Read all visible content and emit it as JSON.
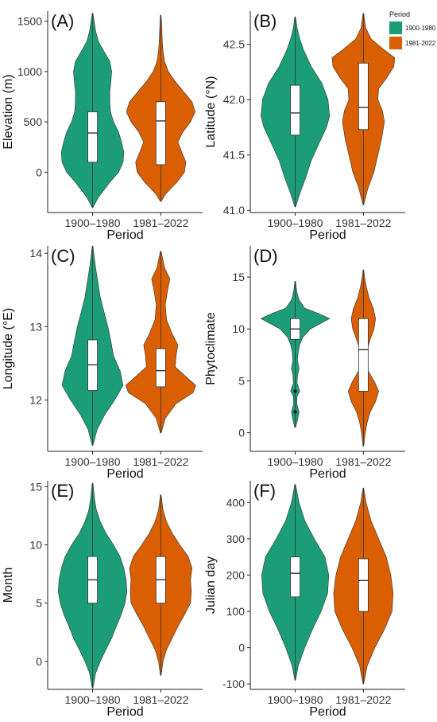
{
  "colors": {
    "series_1900_1980": "#1b9e77",
    "series_1981_2022": "#d95f02",
    "box_fill": "#ffffff",
    "outline": "#333333",
    "axis": "#222222",
    "text": "#111111"
  },
  "legend": {
    "title": "Period",
    "items": [
      {
        "label": "1900-1980",
        "color": "#1b9e77"
      },
      {
        "label": "1981-2022",
        "color": "#d95f02"
      }
    ],
    "placement": "top-right"
  },
  "chart_data": [
    {
      "panel": "(A)",
      "type": "violin",
      "xlabel": "Period",
      "ylabel": "Elevation (m)",
      "categories": [
        "1900–1980",
        "1981–2022"
      ],
      "ylim": [
        -400,
        1600
      ],
      "yticks": [
        0,
        500,
        1000,
        1500
      ],
      "grid": false,
      "groups": [
        {
          "name": "1900–1980",
          "whisker": [
            -350,
            1580
          ],
          "q1": 100,
          "median": 390,
          "q3": 600,
          "density": [
            [
              -350,
              0.01
            ],
            [
              -250,
              0.15
            ],
            [
              -100,
              0.45
            ],
            [
              0,
              0.68
            ],
            [
              100,
              0.8
            ],
            [
              200,
              0.82
            ],
            [
              300,
              0.76
            ],
            [
              400,
              0.68
            ],
            [
              500,
              0.55
            ],
            [
              600,
              0.47
            ],
            [
              700,
              0.45
            ],
            [
              800,
              0.45
            ],
            [
              900,
              0.48
            ],
            [
              1000,
              0.5
            ],
            [
              1100,
              0.45
            ],
            [
              1200,
              0.3
            ],
            [
              1300,
              0.15
            ],
            [
              1400,
              0.08
            ],
            [
              1500,
              0.04
            ],
            [
              1580,
              0.01
            ]
          ]
        },
        {
          "name": "1981–2022",
          "whisker": [
            -290,
            1560
          ],
          "q1": 75,
          "median": 510,
          "q3": 700,
          "density": [
            [
              -290,
              0.01
            ],
            [
              -220,
              0.12
            ],
            [
              -100,
              0.42
            ],
            [
              0,
              0.62
            ],
            [
              100,
              0.66
            ],
            [
              200,
              0.55
            ],
            [
              300,
              0.45
            ],
            [
              400,
              0.58
            ],
            [
              500,
              0.78
            ],
            [
              600,
              0.9
            ],
            [
              700,
              0.82
            ],
            [
              800,
              0.6
            ],
            [
              900,
              0.38
            ],
            [
              1000,
              0.2
            ],
            [
              1100,
              0.1
            ],
            [
              1200,
              0.06
            ],
            [
              1300,
              0.04
            ],
            [
              1400,
              0.03
            ],
            [
              1500,
              0.02
            ],
            [
              1560,
              0.01
            ]
          ]
        }
      ]
    },
    {
      "panel": "(B)",
      "type": "violin",
      "xlabel": "Period",
      "ylabel": "Latitude (°N)",
      "categories": [
        "1900–1980",
        "1981–2022"
      ],
      "ylim": [
        40.98,
        42.8
      ],
      "yticks": [
        41.0,
        41.5,
        42.0,
        42.5
      ],
      "ytick_labels": [
        "41.0",
        "41.5",
        "42.0",
        "42.5"
      ],
      "grid": false,
      "groups": [
        {
          "name": "1900–1980",
          "whisker": [
            41.03,
            42.75
          ],
          "q1": 41.68,
          "median": 41.88,
          "q3": 42.13,
          "density": [
            [
              41.03,
              0.01
            ],
            [
              41.15,
              0.12
            ],
            [
              41.3,
              0.28
            ],
            [
              41.45,
              0.42
            ],
            [
              41.6,
              0.62
            ],
            [
              41.75,
              0.82
            ],
            [
              41.85,
              0.9
            ],
            [
              42.0,
              0.86
            ],
            [
              42.15,
              0.7
            ],
            [
              42.3,
              0.42
            ],
            [
              42.45,
              0.22
            ],
            [
              42.55,
              0.12
            ],
            [
              42.65,
              0.05
            ],
            [
              42.75,
              0.01
            ]
          ]
        },
        {
          "name": "1981–2022",
          "whisker": [
            41.05,
            42.78
          ],
          "q1": 41.73,
          "median": 41.93,
          "q3": 42.33,
          "density": [
            [
              41.05,
              0.01
            ],
            [
              41.2,
              0.12
            ],
            [
              41.35,
              0.28
            ],
            [
              41.5,
              0.38
            ],
            [
              41.65,
              0.48
            ],
            [
              41.8,
              0.55
            ],
            [
              41.9,
              0.5
            ],
            [
              42.0,
              0.38
            ],
            [
              42.1,
              0.4
            ],
            [
              42.2,
              0.62
            ],
            [
              42.3,
              0.8
            ],
            [
              42.38,
              0.82
            ],
            [
              42.45,
              0.55
            ],
            [
              42.55,
              0.2
            ],
            [
              42.65,
              0.06
            ],
            [
              42.78,
              0.01
            ]
          ]
        }
      ]
    },
    {
      "panel": "(C)",
      "type": "violin",
      "xlabel": "Period",
      "ylabel": "Longitude (°E)",
      "categories": [
        "1900–1980",
        "1981–2022"
      ],
      "ylim": [
        11.3,
        14.1
      ],
      "yticks": [
        12,
        13,
        14
      ],
      "grid": false,
      "groups": [
        {
          "name": "1900–1980",
          "whisker": [
            11.38,
            14.1
          ],
          "q1": 12.13,
          "median": 12.48,
          "q3": 12.82,
          "density": [
            [
              11.38,
              0.01
            ],
            [
              11.6,
              0.12
            ],
            [
              11.8,
              0.32
            ],
            [
              12.0,
              0.58
            ],
            [
              12.2,
              0.8
            ],
            [
              12.4,
              0.72
            ],
            [
              12.6,
              0.55
            ],
            [
              12.8,
              0.48
            ],
            [
              13.0,
              0.4
            ],
            [
              13.2,
              0.3
            ],
            [
              13.4,
              0.2
            ],
            [
              13.6,
              0.14
            ],
            [
              13.8,
              0.08
            ],
            [
              14.0,
              0.03
            ],
            [
              14.1,
              0.01
            ]
          ]
        },
        {
          "name": "1981–2022",
          "whisker": [
            11.55,
            14.03
          ],
          "q1": 12.18,
          "median": 12.4,
          "q3": 12.7,
          "density": [
            [
              11.55,
              0.01
            ],
            [
              11.75,
              0.12
            ],
            [
              11.95,
              0.4
            ],
            [
              12.1,
              0.85
            ],
            [
              12.2,
              0.92
            ],
            [
              12.3,
              0.7
            ],
            [
              12.45,
              0.38
            ],
            [
              12.6,
              0.4
            ],
            [
              12.75,
              0.45
            ],
            [
              12.9,
              0.3
            ],
            [
              13.1,
              0.15
            ],
            [
              13.3,
              0.12
            ],
            [
              13.5,
              0.18
            ],
            [
              13.65,
              0.24
            ],
            [
              13.8,
              0.1
            ],
            [
              14.03,
              0.01
            ]
          ]
        }
      ]
    },
    {
      "panel": "(D)",
      "type": "violin",
      "xlabel": "Period",
      "ylabel": "Phytoclimate",
      "categories": [
        "1900–1980",
        "1981–2022"
      ],
      "ylim": [
        -1.8,
        18
      ],
      "yticks": [
        0,
        5,
        10,
        15
      ],
      "grid": false,
      "groups": [
        {
          "name": "1900–1980",
          "whisker": [
            0.5,
            14.6
          ],
          "q1": 9,
          "median": 10,
          "q3": 11,
          "outliers": [
            2,
            4
          ],
          "density": [
            [
              0.5,
              0.01
            ],
            [
              1.2,
              0.06
            ],
            [
              2,
              0.1
            ],
            [
              2.8,
              0.04
            ],
            [
              3.5,
              0.05
            ],
            [
              4,
              0.12
            ],
            [
              4.8,
              0.05
            ],
            [
              5.5,
              0.06
            ],
            [
              6.2,
              0.1
            ],
            [
              7,
              0.06
            ],
            [
              7.8,
              0.08
            ],
            [
              8.5,
              0.12
            ],
            [
              9.2,
              0.2
            ],
            [
              10,
              0.4
            ],
            [
              10.5,
              0.65
            ],
            [
              11,
              0.9
            ],
            [
              11.5,
              0.6
            ],
            [
              12,
              0.25
            ],
            [
              12.8,
              0.1
            ],
            [
              13.6,
              0.04
            ],
            [
              14.6,
              0.01
            ]
          ]
        },
        {
          "name": "1981–2022",
          "whisker": [
            -1.3,
            15.7
          ],
          "q1": 4,
          "median": 8,
          "q3": 11,
          "density": [
            [
              -1.3,
              0.01
            ],
            [
              0,
              0.05
            ],
            [
              1,
              0.1
            ],
            [
              2,
              0.18
            ],
            [
              3,
              0.32
            ],
            [
              4,
              0.4
            ],
            [
              5,
              0.28
            ],
            [
              6,
              0.12
            ],
            [
              7,
              0.08
            ],
            [
              8,
              0.1
            ],
            [
              9,
              0.18
            ],
            [
              10,
              0.28
            ],
            [
              11,
              0.32
            ],
            [
              12,
              0.26
            ],
            [
              13,
              0.15
            ],
            [
              14,
              0.08
            ],
            [
              15,
              0.03
            ],
            [
              15.7,
              0.01
            ]
          ]
        }
      ]
    },
    {
      "panel": "(E)",
      "type": "violin",
      "xlabel": "Period",
      "ylabel": "Month",
      "categories": [
        "1900–1980",
        "1981–2022"
      ],
      "ylim": [
        -2.4,
        15.5
      ],
      "yticks": [
        0,
        5,
        10,
        15
      ],
      "grid": false,
      "groups": [
        {
          "name": "1900–1980",
          "whisker": [
            -2.3,
            15.3
          ],
          "q1": 5,
          "median": 7,
          "q3": 9,
          "density": [
            [
              -2.3,
              0.01
            ],
            [
              -1,
              0.08
            ],
            [
              0,
              0.2
            ],
            [
              1,
              0.35
            ],
            [
              2,
              0.5
            ],
            [
              3,
              0.62
            ],
            [
              4,
              0.75
            ],
            [
              5,
              0.85
            ],
            [
              6,
              0.9
            ],
            [
              7,
              0.88
            ],
            [
              8,
              0.82
            ],
            [
              9,
              0.72
            ],
            [
              10,
              0.55
            ],
            [
              11,
              0.35
            ],
            [
              12,
              0.2
            ],
            [
              13,
              0.1
            ],
            [
              14,
              0.05
            ],
            [
              15.3,
              0.01
            ]
          ]
        },
        {
          "name": "1981–2022",
          "whisker": [
            -1.2,
            14.3
          ],
          "q1": 5,
          "median": 7,
          "q3": 9,
          "density": [
            [
              -1.2,
              0.01
            ],
            [
              0,
              0.06
            ],
            [
              1,
              0.15
            ],
            [
              2,
              0.3
            ],
            [
              3,
              0.45
            ],
            [
              4,
              0.62
            ],
            [
              5,
              0.78
            ],
            [
              6,
              0.8
            ],
            [
              7,
              0.78
            ],
            [
              8,
              0.82
            ],
            [
              9,
              0.72
            ],
            [
              10,
              0.5
            ],
            [
              11,
              0.3
            ],
            [
              12,
              0.15
            ],
            [
              13,
              0.06
            ],
            [
              14.3,
              0.01
            ]
          ]
        }
      ]
    },
    {
      "panel": "(F)",
      "type": "violin",
      "xlabel": "Period",
      "ylabel": "Julian day",
      "categories": [
        "1900–1980",
        "1981–2022"
      ],
      "ylim": [
        -115,
        460
      ],
      "yticks": [
        -100,
        0,
        100,
        200,
        300,
        400
      ],
      "grid": false,
      "groups": [
        {
          "name": "1900–1980",
          "whisker": [
            -90,
            450
          ],
          "q1": 140,
          "median": 205,
          "q3": 250,
          "density": [
            [
              -90,
              0.01
            ],
            [
              -50,
              0.08
            ],
            [
              0,
              0.25
            ],
            [
              50,
              0.45
            ],
            [
              100,
              0.68
            ],
            [
              150,
              0.85
            ],
            [
              200,
              0.88
            ],
            [
              250,
              0.78
            ],
            [
              300,
              0.5
            ],
            [
              350,
              0.25
            ],
            [
              400,
              0.1
            ],
            [
              450,
              0.01
            ]
          ]
        },
        {
          "name": "1981–2022",
          "whisker": [
            -100,
            440
          ],
          "q1": 100,
          "median": 185,
          "q3": 245,
          "density": [
            [
              -100,
              0.01
            ],
            [
              -50,
              0.1
            ],
            [
              0,
              0.3
            ],
            [
              50,
              0.55
            ],
            [
              100,
              0.75
            ],
            [
              150,
              0.78
            ],
            [
              200,
              0.72
            ],
            [
              250,
              0.6
            ],
            [
              300,
              0.4
            ],
            [
              350,
              0.2
            ],
            [
              400,
              0.07
            ],
            [
              440,
              0.01
            ]
          ]
        }
      ]
    }
  ]
}
